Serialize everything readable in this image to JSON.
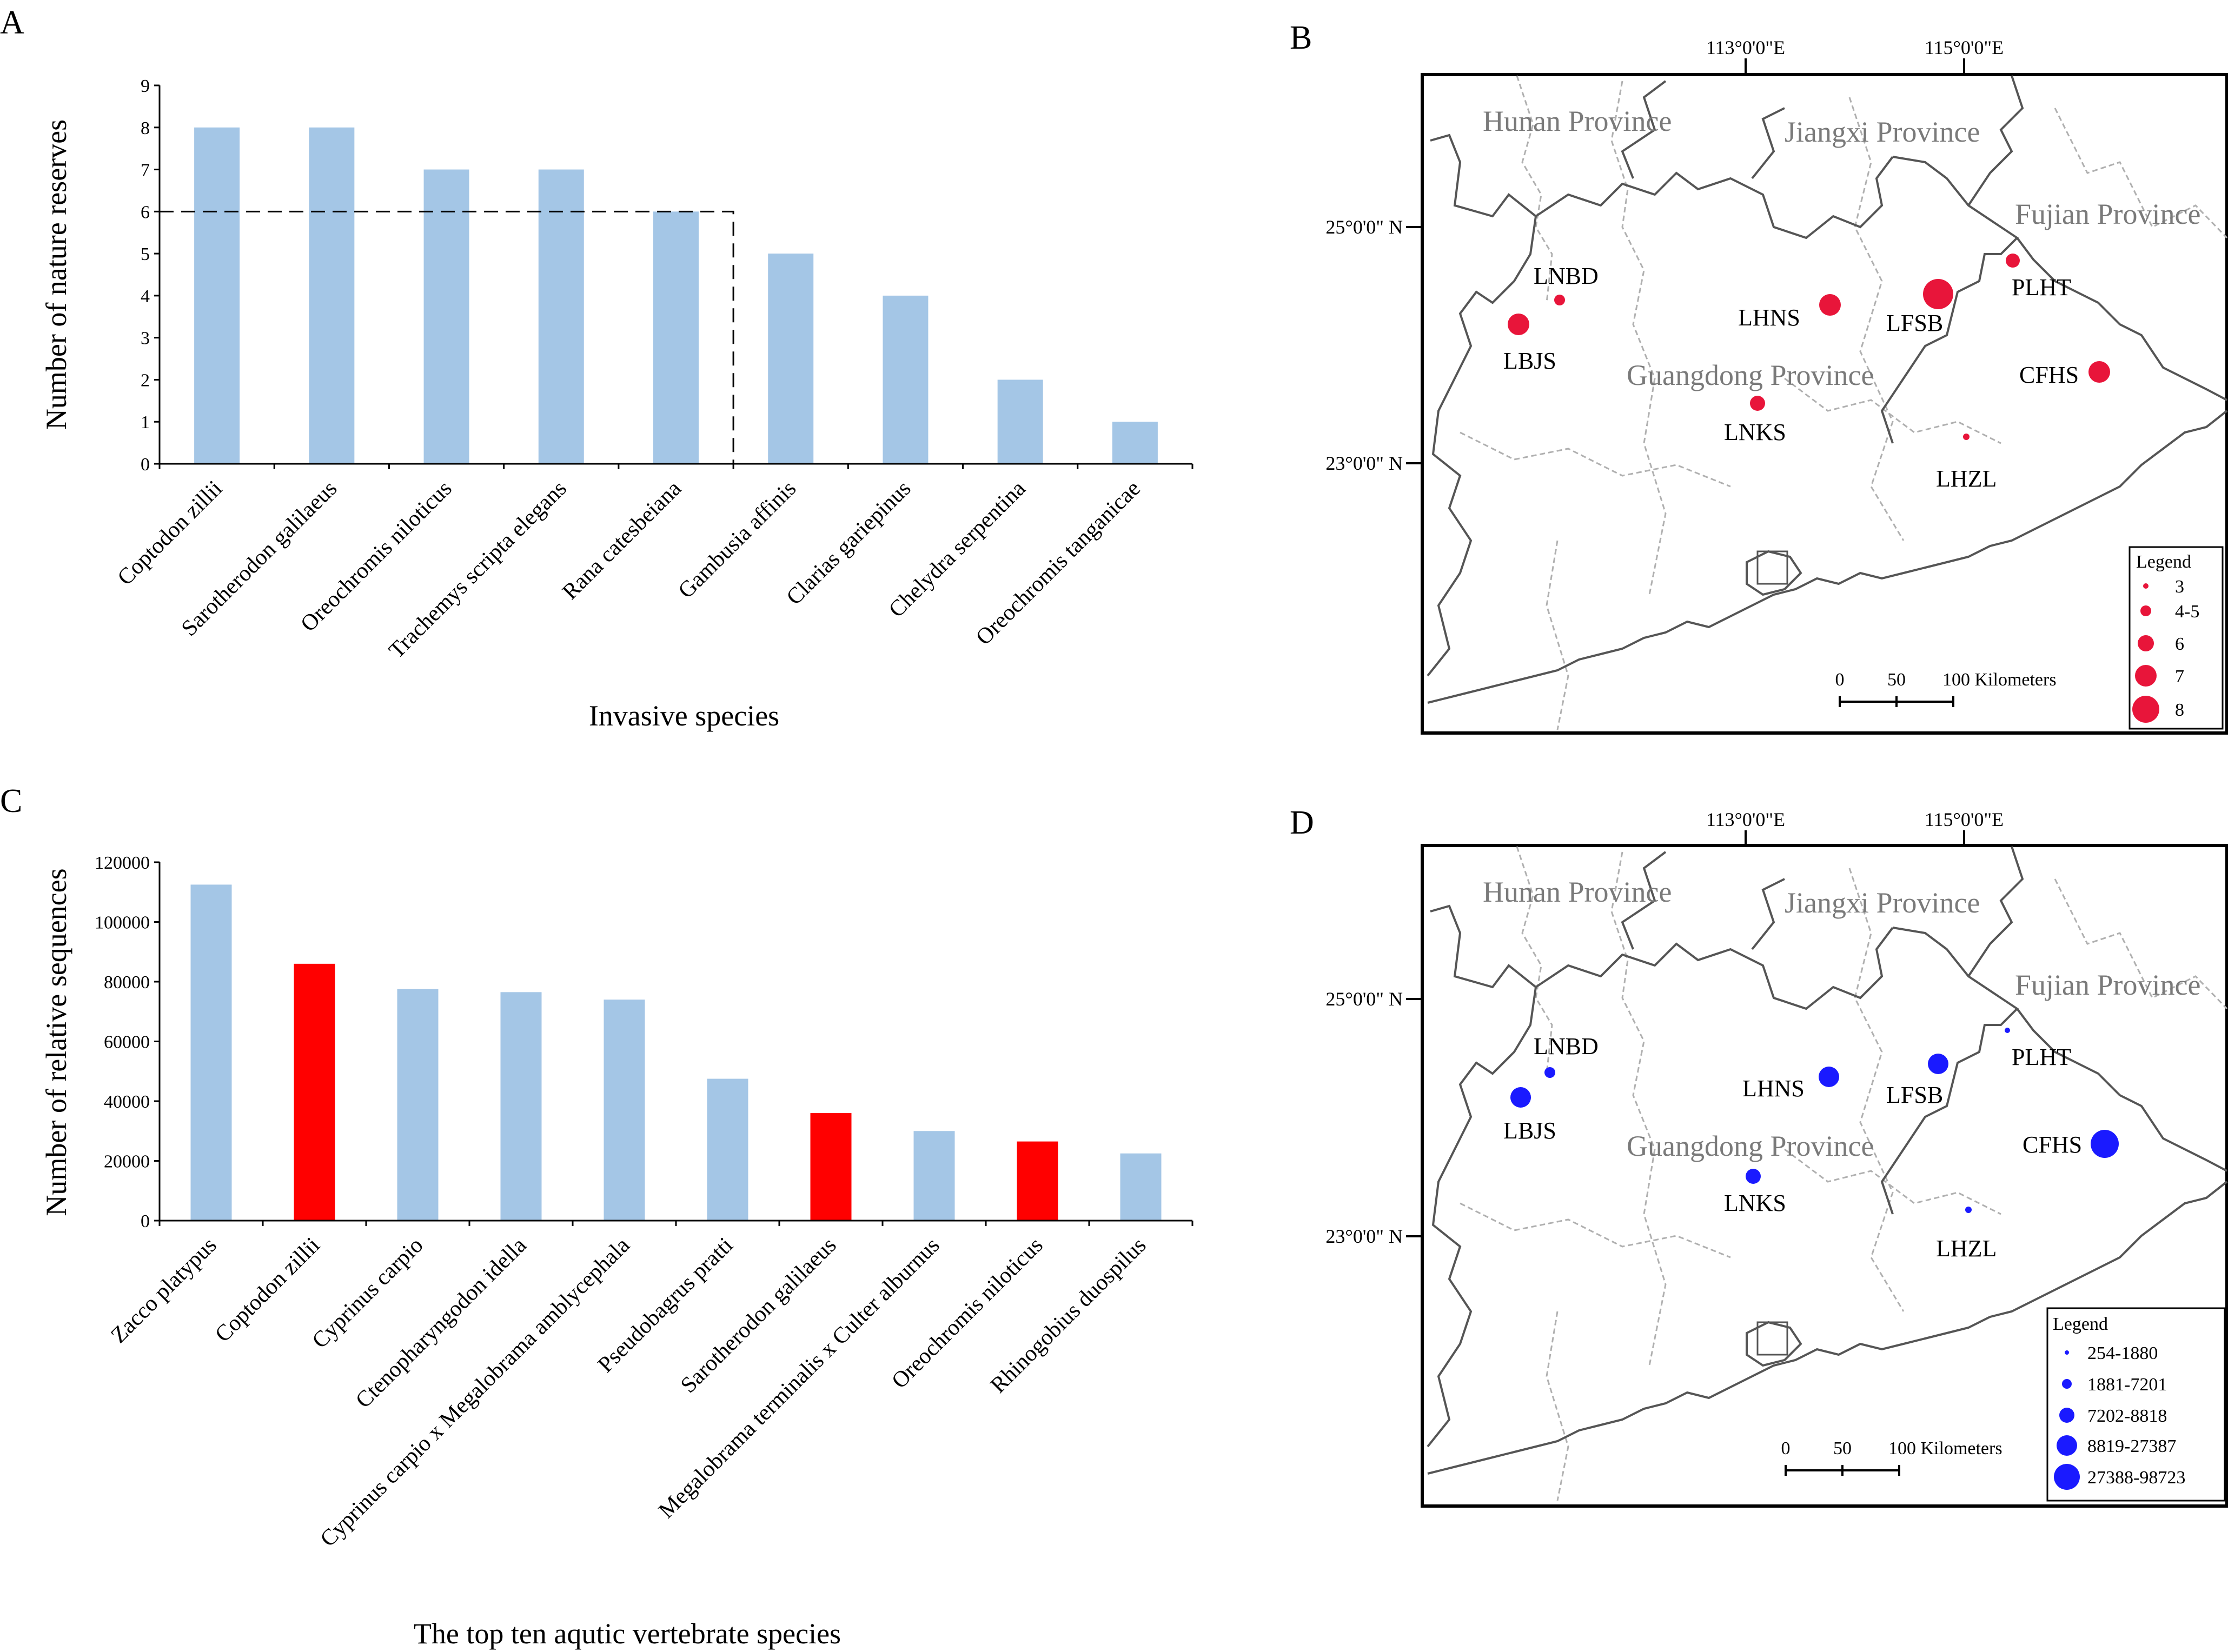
{
  "chart_data": [
    {
      "panel": "A",
      "type": "bar",
      "xlabel": "Invasive species",
      "ylabel": "Number of nature reserves",
      "ylim": [
        0,
        9
      ],
      "yticks": [
        "0",
        "1",
        "2",
        "3",
        "4",
        "5",
        "6",
        "7",
        "8",
        "9"
      ],
      "categories": [
        "Coptodon zillii",
        "Sarotherodon galilaeus",
        "Oreochromis niloticus",
        "Trachemys scripta elegans",
        "Rana catesbeiana",
        "Gambusia affinis",
        "Clarias gariepinus",
        "Chelydra serpentina",
        "Oreochromis tanganicae"
      ],
      "values": [
        8,
        8,
        7,
        7,
        6,
        5,
        4,
        2,
        1
      ],
      "bar_color": "#a4c6e6",
      "threshold": {
        "value": 6,
        "ends_after_category": 4
      }
    },
    {
      "panel": "C",
      "type": "bar",
      "xlabel": "The top ten aqutic vertebrate species",
      "ylabel": "Number of relative sequences",
      "ylim": [
        0,
        120000
      ],
      "yticks": [
        "0",
        "20000",
        "40000",
        "60000",
        "80000",
        "100000",
        "120000"
      ],
      "categories": [
        "Zacco platypus",
        "Coptodon zillii",
        "Cyprinus carpio",
        "Ctenopharyngodon idella",
        "Cyprinus carpio x Megalobrama amblycephala",
        "Pseudobagrus pratti",
        "Sarotherodon galilaeus",
        "Megalobrama terminalis x Culter alburnus",
        "Oreochromis niloticus",
        "Rhinogobius duospilus"
      ],
      "values": [
        112500,
        86000,
        77500,
        76500,
        74000,
        47500,
        36000,
        30000,
        26500,
        22500
      ],
      "colors": [
        "#a4c6e6",
        "#ff0000",
        "#a4c6e6",
        "#a4c6e6",
        "#a4c6e6",
        "#a4c6e6",
        "#ff0000",
        "#a4c6e6",
        "#ff0000",
        "#a4c6e6"
      ]
    }
  ],
  "maps": [
    {
      "panel": "B",
      "lon_labels": [
        "113°0'0\"E",
        "115°0'0\"E"
      ],
      "lat_labels": [
        "25°0'0\" N",
        "23°0'0\" N"
      ],
      "provinces": [
        "Hunan Province",
        "Jiangxi Province",
        "Fujian Province",
        "Guangdong Province"
      ],
      "point_color": "#e8153a",
      "sites": [
        {
          "name": "LNBD",
          "value": "3"
        },
        {
          "name": "LBJS",
          "value": "6"
        },
        {
          "name": "LHNS",
          "value": "6"
        },
        {
          "name": "LFSB",
          "value": "8"
        },
        {
          "name": "PLHT",
          "value": "4-5"
        },
        {
          "name": "CFHS",
          "value": "6"
        },
        {
          "name": "LNKS",
          "value": "4-5"
        },
        {
          "name": "LHZL",
          "value": "3"
        }
      ],
      "legend_title": "Legend",
      "legend": [
        "3",
        "4-5",
        "6",
        "7",
        "8"
      ],
      "scale": [
        "0",
        "50",
        "100 Kilometers"
      ]
    },
    {
      "panel": "D",
      "lon_labels": [
        "113°0'0\"E",
        "115°0'0\"E"
      ],
      "lat_labels": [
        "25°0'0\" N",
        "23°0'0\" N"
      ],
      "provinces": [
        "Hunan Province",
        "Jiangxi Province",
        "Fujian Province",
        "Guangdong Province"
      ],
      "point_color": "#1a1aff",
      "sites": [
        {
          "name": "LNBD",
          "value": "1881-7201"
        },
        {
          "name": "LBJS",
          "value": "8819-27387"
        },
        {
          "name": "LHNS",
          "value": "8819-27387"
        },
        {
          "name": "LFSB",
          "value": "8819-27387"
        },
        {
          "name": "PLHT",
          "value": "254-1880"
        },
        {
          "name": "CFHS",
          "value": "27388-98723"
        },
        {
          "name": "LNKS",
          "value": "1881-7201"
        },
        {
          "name": "LHZL",
          "value": "254-1880"
        }
      ],
      "legend_title": "Legend",
      "legend": [
        "254-1880",
        "1881-7201",
        "7202-8818",
        "8819-27387",
        "27388-98723"
      ],
      "scale": [
        "0",
        "50",
        "100 Kilometers"
      ]
    }
  ]
}
